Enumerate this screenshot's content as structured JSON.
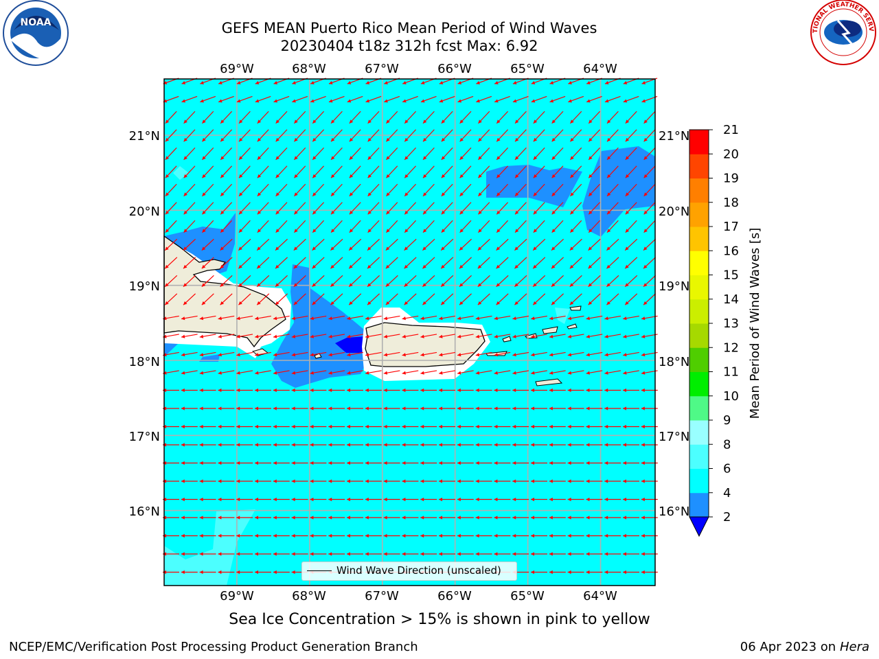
{
  "header": {
    "title_line1": "GEFS MEAN Puerto Rico Mean Period of Wind Waves",
    "title_line2": "20230404 t18z 312h fcst   Max: 6.92"
  },
  "logos": {
    "left": "NOAA",
    "right": "NATIONAL WEATHER SERVICE"
  },
  "map": {
    "lon_labels": [
      "69°W",
      "68°W",
      "67°W",
      "66°W",
      "65°W",
      "64°W"
    ],
    "lat_labels": [
      "21°N",
      "20°N",
      "19°N",
      "18°N",
      "17°N",
      "16°N"
    ],
    "extent": {
      "lon_min": -70.0,
      "lon_max": -63.25,
      "lat_min": 15.0,
      "lat_max": 21.75
    },
    "ocean_color": "#00ffff",
    "lighter_color": "#4cffff",
    "mid_blue": "#1e90ff",
    "deep_blue": "#0000ff",
    "land_color": "#efedda",
    "arrow_color": "#ff0000",
    "legend_label": "Wind Wave Direction (unscaled)"
  },
  "colorbar": {
    "label": "Mean Period of Wind Waves [s]",
    "ticks": [
      "2",
      "4",
      "6",
      "8",
      "9",
      "10",
      "11",
      "12",
      "13",
      "14",
      "15",
      "16",
      "17",
      "18",
      "19",
      "20",
      "21"
    ],
    "colors": [
      "#0000ff",
      "#1e90ff",
      "#00ffff",
      "#4cffff",
      "#99ffff",
      "#4ff987",
      "#00ee00",
      "#4fce00",
      "#a6d900",
      "#cbee00",
      "#e9f700",
      "#ffff00",
      "#ffc400",
      "#ffa200",
      "#ff7f00",
      "#ff4500",
      "#ff0000"
    ]
  },
  "note": "Sea Ice Concentration > 15% is shown in pink to yellow",
  "footer": {
    "left": "NCEP/EMC/Verification Post Processing Product Generation Branch",
    "right_prefix": "06 Apr 2023 on ",
    "right_host": "Hera"
  }
}
